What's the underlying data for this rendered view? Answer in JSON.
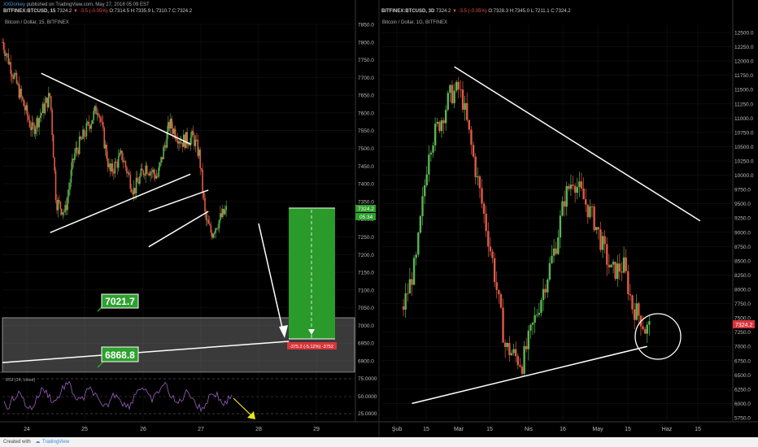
{
  "publish": {
    "author": "XXDorkey",
    "text": "published on TradingView.com, May 27, 2018 05:09 EST"
  },
  "left_header": {
    "symbol": "BITFINEX:BTCUSD, 15",
    "price": "7324.2",
    "change": "▼ -3.5 (-0.05%)",
    "ohlc": "O:7314.5 H:7335.9 L:7310.7 C:7324.2",
    "subtitle": "Bitcoin / Dollar, 15, BITFINEX"
  },
  "right_header": {
    "symbol": "BITFINEX:BTCUSD, 3D",
    "price": "7324.2",
    "change": "▼ -3.5 (-0.05%)",
    "ohlc": "O:7328.3 H:7345.0 L:7211.1 C:7324.2",
    "subtitle": "Bitcoin / Dollar, 1G, BITFINEX"
  },
  "annotations": {
    "level_high": "7021.7",
    "level_low": "6868.8",
    "position_label": "-375.2 (-5.12%) -3752",
    "price_tag_left": "7324.2",
    "time_tag_left": "05:34",
    "price_tag_right": "7324.2"
  },
  "rsi": {
    "label": "RSI (14, close)",
    "ticks": [
      "75.0000",
      "50.0000",
      "25.0000"
    ]
  },
  "footer": {
    "created": "Created with",
    "brand": "TradingView"
  },
  "colors": {
    "up": "#5ab552",
    "down": "#e05a44",
    "trend": "#ffffff",
    "zone": "#808080",
    "tag_green": "#2e9e2e",
    "tag_red": "#d9343a",
    "rsi_line": "#9b5fc0",
    "arrow_yellow": "#e8e41c"
  },
  "chart_data": [
    {
      "type": "line",
      "title": "Bitcoin / Dollar, 15, BITFINEX",
      "xlabel": "",
      "ylabel": "",
      "x_ticks": [
        "24",
        "25",
        "26",
        "27",
        "28",
        "29"
      ],
      "y_ticks": [
        "7850.0",
        "7800.0",
        "7750.0",
        "7700.0",
        "7650.0",
        "7600.0",
        "7550.0",
        "7500.0",
        "7450.0",
        "7400.0",
        "7350.0",
        "7300.0",
        "7250.0",
        "7200.0",
        "7150.0",
        "7100.0",
        "7050.0",
        "7000.0",
        "6950.0",
        "6900.0"
      ],
      "ylim": [
        6860,
        7880
      ],
      "series": [
        {
          "x": [
            23.7,
            23.9,
            24.2,
            24.5,
            24.6,
            24.75,
            24.9,
            25.1,
            25.3,
            25.5,
            25.7,
            25.9,
            26.1,
            26.3,
            26.5,
            26.7,
            26.9,
            27.0,
            27.1,
            27.2,
            27.3,
            27.45
          ],
          "y": [
            7800,
            7700,
            7550,
            7650,
            7350,
            7320,
            7480,
            7550,
            7620,
            7430,
            7480,
            7380,
            7450,
            7420,
            7570,
            7520,
            7530,
            7480,
            7300,
            7260,
            7290,
            7324.2
          ]
        }
      ],
      "trendlines": [
        {
          "x": [
            24.35,
            26.85
          ],
          "y": [
            7712,
            7512
          ]
        },
        {
          "x": [
            24.5,
            26.85
          ],
          "y": [
            7262,
            7427
          ]
        },
        {
          "x": [
            26.15,
            27.15
          ],
          "y": [
            7322,
            7382
          ]
        },
        {
          "x": [
            26.15,
            27.15
          ],
          "y": [
            7222,
            7322
          ]
        },
        {
          "x": [
            23.7,
            28.5
          ],
          "y": [
            6895,
            6955
          ]
        }
      ],
      "zones": [
        {
          "from": 6868.8,
          "to": 7021.7
        }
      ],
      "position": {
        "entry": 7324.2,
        "target": 6949,
        "change": "-375.2 (-5.12%) -3752"
      }
    },
    {
      "type": "line",
      "title": "Bitcoin / Dollar, 1G, BITFINEX",
      "xlabel": "",
      "ylabel": "",
      "x_ticks": [
        "Şub",
        "15",
        "Mar",
        "15",
        "Nis",
        "16",
        "May",
        "15",
        "Haz",
        "15"
      ],
      "y_ticks": [
        "12500.0",
        "12250.0",
        "12000.0",
        "11750.0",
        "11500.0",
        "11250.0",
        "11000.0",
        "10750.0",
        "10500.0",
        "10250.0",
        "10000.0",
        "9750.0",
        "9500.0",
        "9250.0",
        "9000.0",
        "8750.0",
        "8500.0",
        "8250.0",
        "8000.0",
        "7750.0",
        "7500.0",
        "7250.0",
        "7000.0",
        "6750.0",
        "6500.0",
        "6250.0",
        "6000.0",
        "5750.0"
      ],
      "ylim": [
        5700,
        12600
      ],
      "series": [
        {
          "x": [
            0,
            6,
            12,
            18,
            22,
            26,
            28,
            34,
            42,
            48,
            56,
            66,
            72,
            76,
            80,
            90,
            98,
            104,
            108,
            112,
            114,
            116
          ],
          "y": [
            7700,
            8500,
            10500,
            11000,
            11400,
            11500,
            11300,
            10100,
            8500,
            7000,
            6700,
            8000,
            8800,
            9600,
            9950,
            9200,
            8300,
            8400,
            7700,
            7500,
            7300,
            7324.2
          ]
        }
      ],
      "trendlines": [
        {
          "x": [
            4,
            115
          ],
          "y": [
            6000,
            7000
          ]
        },
        {
          "x": [
            24,
            140
          ],
          "y": [
            11900,
            9200
          ]
        }
      ]
    }
  ]
}
